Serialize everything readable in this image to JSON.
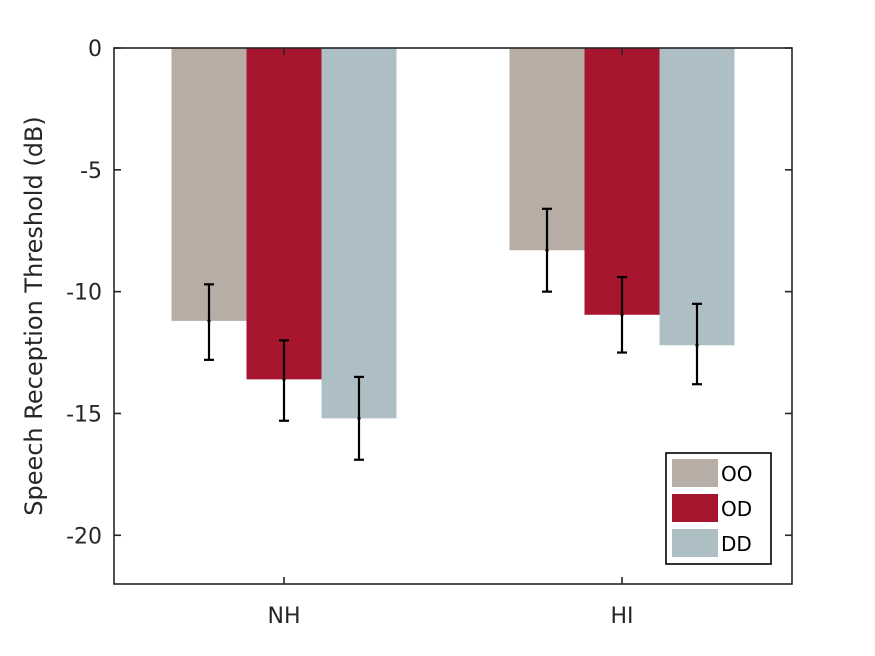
{
  "chart_data": {
    "type": "bar",
    "title": "",
    "xlabel": "",
    "ylabel": "Speech Reception Threshold (dB)",
    "categories": [
      "NH",
      "HI"
    ],
    "ylim": [
      -22,
      0
    ],
    "yticks": [
      0,
      -5,
      -10,
      -15,
      -20
    ],
    "ytick_labels": [
      "0",
      "-5",
      "-10",
      "-15",
      "-20"
    ],
    "grid": false,
    "legend_position": "bottom-right",
    "series": [
      {
        "name": "OO",
        "color": "#b7ada5",
        "values": [
          -11.2,
          -8.3
        ],
        "err_low": [
          -12.8,
          -10.0
        ],
        "err_high": [
          -9.7,
          -6.6
        ]
      },
      {
        "name": "OD",
        "color": "#a8152e",
        "values": [
          -13.6,
          -10.95
        ],
        "err_low": [
          -15.3,
          -12.5
        ],
        "err_high": [
          -12.0,
          -9.4
        ]
      },
      {
        "name": "DD",
        "color": "#adbfc4",
        "values": [
          -15.2,
          -12.2
        ],
        "err_low": [
          -16.9,
          -13.8
        ],
        "err_high": [
          -13.5,
          -10.5
        ]
      }
    ]
  }
}
